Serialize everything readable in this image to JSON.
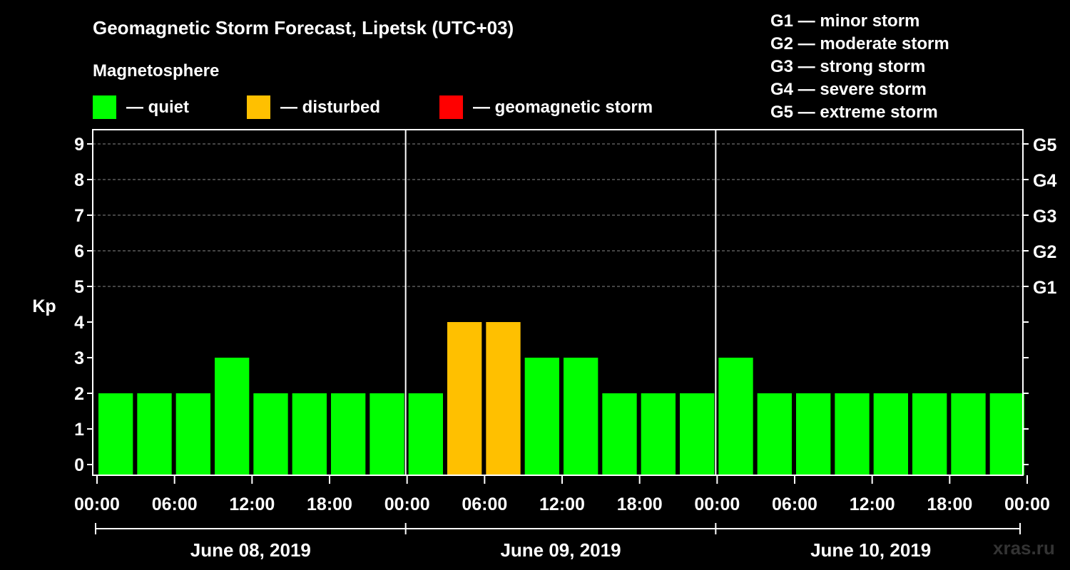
{
  "chart_data": {
    "type": "bar",
    "title": "Geomagnetic Storm Forecast, Lipetsk (UTC+03)",
    "ylabel": "Kp",
    "ylim": [
      0,
      9
    ],
    "yticks": [
      "0",
      "1",
      "2",
      "3",
      "4",
      "5",
      "6",
      "7",
      "8",
      "9"
    ],
    "right_axis_labels": [
      {
        "kp": 5,
        "label": "G1"
      },
      {
        "kp": 6,
        "label": "G2"
      },
      {
        "kp": 7,
        "label": "G3"
      },
      {
        "kp": 8,
        "label": "G4"
      },
      {
        "kp": 9,
        "label": "G5"
      }
    ],
    "xtick_labels": [
      "00:00",
      "06:00",
      "12:00",
      "18:00",
      "00:00",
      "06:00",
      "12:00",
      "18:00",
      "00:00",
      "06:00",
      "12:00",
      "18:00",
      "00:00"
    ],
    "days": [
      "June 08, 2019",
      "June 09, 2019",
      "June 10, 2019"
    ],
    "interval_hours": 3,
    "values": [
      2,
      2,
      2,
      3,
      2,
      2,
      2,
      2,
      2,
      4,
      4,
      3,
      3,
      2,
      2,
      2,
      3,
      2,
      2,
      2,
      2,
      2,
      2,
      2
    ],
    "status": [
      "quiet",
      "quiet",
      "quiet",
      "quiet",
      "quiet",
      "quiet",
      "quiet",
      "quiet",
      "quiet",
      "disturbed",
      "disturbed",
      "quiet",
      "quiet",
      "quiet",
      "quiet",
      "quiet",
      "quiet",
      "quiet",
      "quiet",
      "quiet",
      "quiet",
      "quiet",
      "quiet",
      "quiet"
    ],
    "grid": "dashed, Kp 5-9"
  },
  "colors": {
    "quiet": "#00ff00",
    "disturbed": "#ffc000",
    "storm": "#ff0000"
  },
  "legend": {
    "heading": "Magnetosphere",
    "quiet_label": "— quiet",
    "disturbed_label": "— disturbed",
    "storm_label": "— geomagnetic storm"
  },
  "storm_scale": [
    "G1 — minor storm",
    "G2 — moderate storm",
    "G3 — strong storm",
    "G4 — severe storm",
    "G5 — extreme storm"
  ],
  "watermark": "xras.ru"
}
